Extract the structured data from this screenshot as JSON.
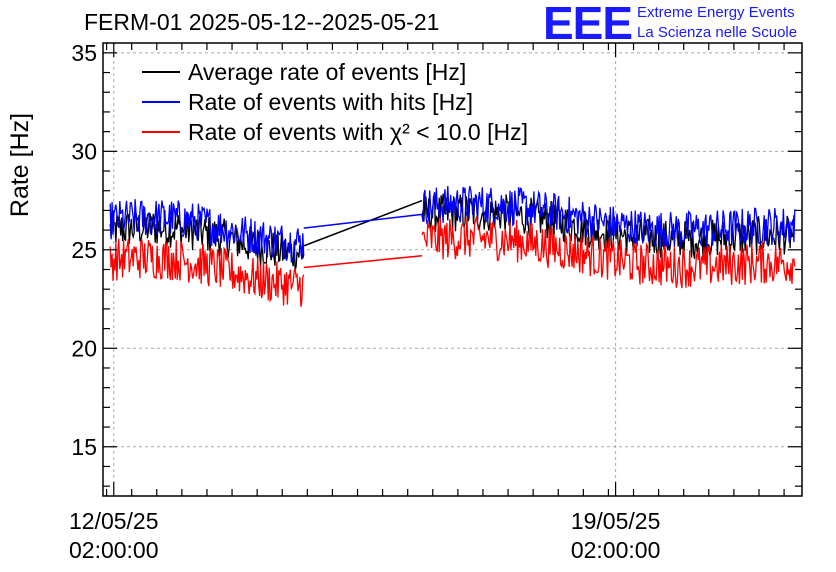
{
  "header": {
    "title": "FERM-01 2025-05-12--2025-05-21",
    "logo_text": "EEE",
    "logo_line1": "Extreme Energy Events",
    "logo_line2": "La Scienza nelle Scuole"
  },
  "chart_data": {
    "type": "line",
    "ylabel": "Rate [Hz]",
    "ylim": [
      12.5,
      35.5
    ],
    "yticks": [
      15,
      20,
      25,
      30,
      35
    ],
    "xlim": [
      -0.15,
      9.6
    ],
    "x_unit": "days from 12/05/25 02:00:00",
    "xticks": [
      {
        "value": 0,
        "label_date": "12/05/25",
        "label_time": "02:00:00"
      },
      {
        "value": 7,
        "label_date": "19/05/25",
        "label_time": "02:00:00"
      }
    ],
    "grid": true,
    "legend_position": "top-left",
    "colors": {
      "avg": "#000000",
      "hits": "#0000ff",
      "chi2": "#ff0000"
    },
    "series": [
      {
        "name": "Average rate of events [Hz]",
        "key": "avg",
        "segments": [
          {
            "x0": -0.05,
            "x1": 2.65,
            "base": [
              26.0,
              25.2
            ],
            "noise": 1.0
          },
          {
            "x0": 4.3,
            "x1": 9.5,
            "base": [
              26.8,
              25.4
            ],
            "noise": 1.0
          }
        ],
        "gap_line": [
          [
            2.65,
            25.2
          ],
          [
            4.3,
            27.5
          ]
        ]
      },
      {
        "name": "Rate of events with hits [Hz]",
        "key": "hits",
        "segments": [
          {
            "x0": -0.05,
            "x1": 2.65,
            "base": [
              26.5,
              25.7
            ],
            "noise": 1.0
          },
          {
            "x0": 4.3,
            "x1": 9.5,
            "base": [
              27.2,
              25.9
            ],
            "noise": 1.0
          }
        ],
        "gap_line": [
          [
            2.65,
            26.1
          ],
          [
            4.3,
            26.8
          ]
        ]
      },
      {
        "name": "Rate of events with χ² < 10.0 [Hz]",
        "key": "chi2",
        "segments": [
          {
            "x0": -0.05,
            "x1": 2.65,
            "base": [
              24.5,
              23.5
            ],
            "noise": 1.1
          },
          {
            "x0": 4.3,
            "x1": 9.5,
            "base": [
              25.5,
              24.0
            ],
            "noise": 1.1
          }
        ],
        "gap_line": [
          [
            2.65,
            24.1
          ],
          [
            4.3,
            24.7
          ]
        ]
      }
    ]
  }
}
